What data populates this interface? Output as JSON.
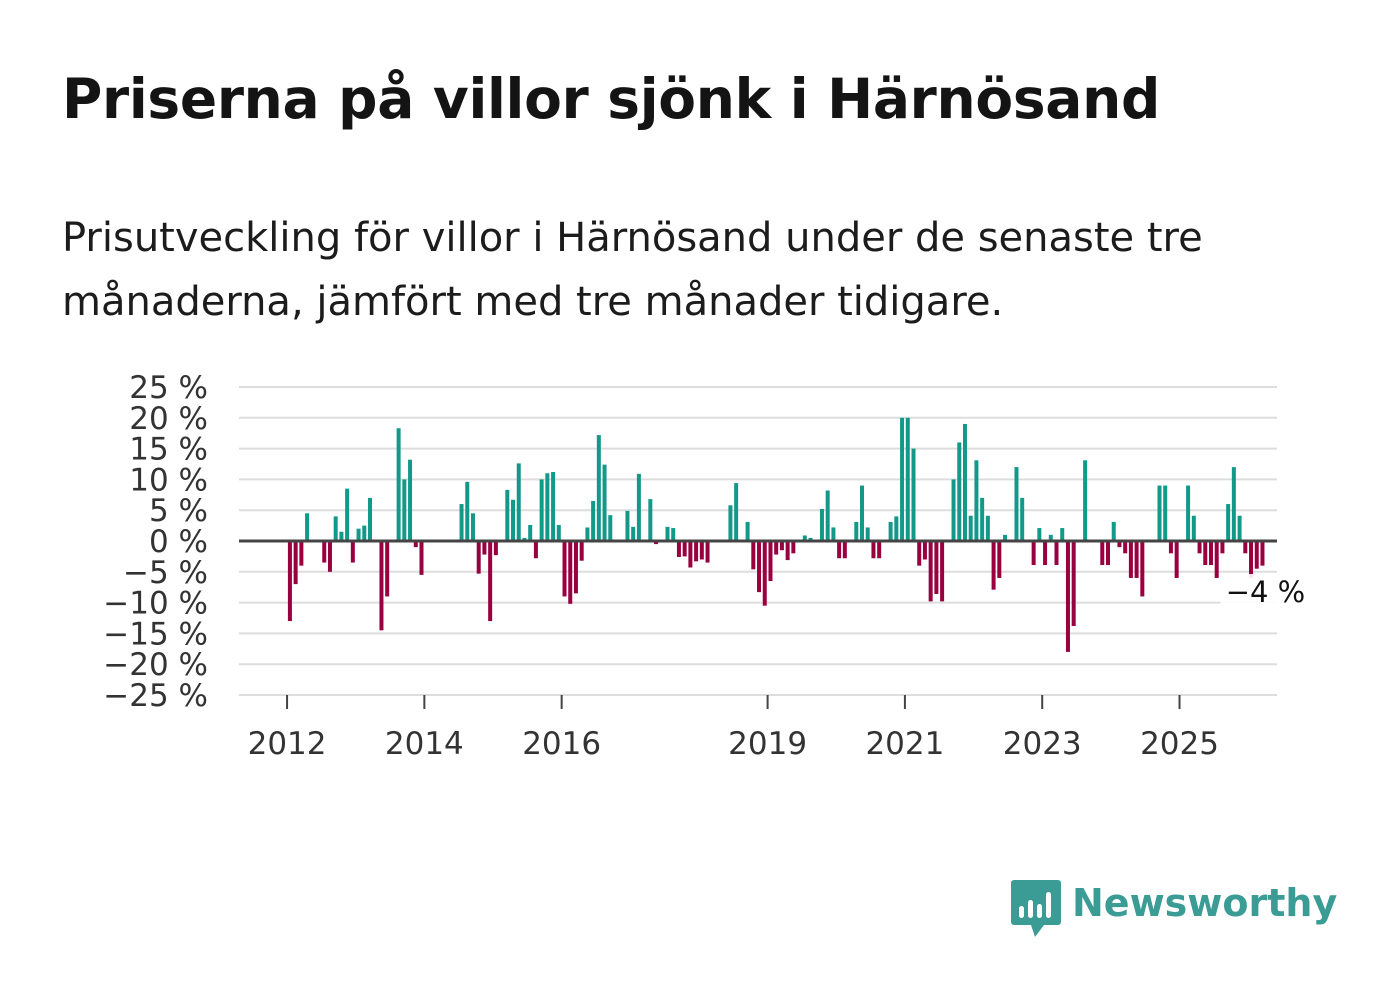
{
  "header": {
    "title": "Priserna på villor sjönk i Härnösand",
    "subtitle": "Prisutveckling för villor i Härnösand under de senaste tre månaderna, jämfört med tre månader tidigare."
  },
  "brand": {
    "name": "Newsworthy",
    "icon": "newsworthy-logo-icon",
    "color": "#3a9c94"
  },
  "colors": {
    "positive": "#13998a",
    "negative": "#990040",
    "grid": "#dddddd",
    "zero_line": "#444444",
    "axis_text": "#333333"
  },
  "chart_data": {
    "type": "bar",
    "title": "Priserna på villor sjönk i Härnösand",
    "xlabel": "",
    "ylabel": "",
    "ylim": [
      -25,
      25
    ],
    "y_ticks": [
      25,
      20,
      15,
      10,
      5,
      0,
      -5,
      -10,
      -15,
      -20,
      -25
    ],
    "y_tick_labels": [
      "25 %",
      "20 %",
      "15 %",
      "10 %",
      "5 %",
      "0 %",
      "−5 %",
      "−10 %",
      "−15 %",
      "−20 %",
      "−25 %"
    ],
    "x_ticks": [
      2012,
      2014,
      2016,
      2019,
      2021,
      2023,
      2025
    ],
    "x_tick_labels": [
      "2012",
      "2014",
      "2016",
      "2019",
      "2021",
      "2023",
      "2025"
    ],
    "x_start": 2011.3,
    "x_end": 2026.42,
    "bar_width_months": 0.7,
    "grid": true,
    "last_value_label": "−4 %",
    "values": [
      -13,
      -7,
      -4,
      4.5,
      0,
      0,
      -3.5,
      -5,
      4,
      1.5,
      8.5,
      -3.5,
      2,
      2.5,
      7,
      0,
      -14.5,
      -9,
      0,
      18.3,
      10,
      13.2,
      -1,
      -5.5,
      0,
      0,
      0,
      0,
      0,
      0,
      6,
      9.6,
      4.5,
      -5.3,
      -2.2,
      -13,
      -2.3,
      0,
      8.3,
      6.7,
      12.6,
      0.5,
      2.6,
      -2.8,
      10,
      11,
      11.2,
      2.6,
      -9,
      -10.2,
      -8.5,
      -3.2,
      2.2,
      6.5,
      17.2,
      12.4,
      4.2,
      0,
      0,
      4.9,
      2.3,
      10.9,
      0,
      6.8,
      -0.5,
      0,
      2.3,
      2.1,
      -2.6,
      -2.5,
      -4.3,
      -3.3,
      -3,
      -3.5,
      0,
      0,
      0,
      5.8,
      9.4,
      0,
      3.1,
      -4.6,
      -8.3,
      -10.5,
      -6.5,
      -2.2,
      -1.5,
      -3.1,
      -2,
      0,
      0.9,
      0.5,
      0,
      5.2,
      8.2,
      2.2,
      -2.8,
      -2.8,
      0,
      3.1,
      9,
      2.2,
      -2.8,
      -2.8,
      0,
      3.1,
      4,
      20,
      20,
      15,
      -4,
      -3,
      -9.8,
      -8.6,
      -9.8,
      0,
      10,
      16,
      19,
      4.1,
      13.1,
      7,
      4.1,
      -7.9,
      -6,
      1,
      0,
      12,
      7,
      0,
      -3.9,
      2.1,
      -3.9,
      1,
      -3.9,
      2.1,
      -18,
      -13.8,
      0,
      13.1,
      0,
      0,
      -3.9,
      -3.9,
      3.1,
      -1,
      -2,
      -6,
      -6,
      -9,
      0,
      0,
      9,
      9,
      -2,
      -6,
      0,
      9,
      4.1,
      -2,
      -3.9,
      -3.9,
      -6,
      -2,
      6,
      12,
      4.1,
      -2,
      -6,
      -4.5,
      -4
    ]
  }
}
